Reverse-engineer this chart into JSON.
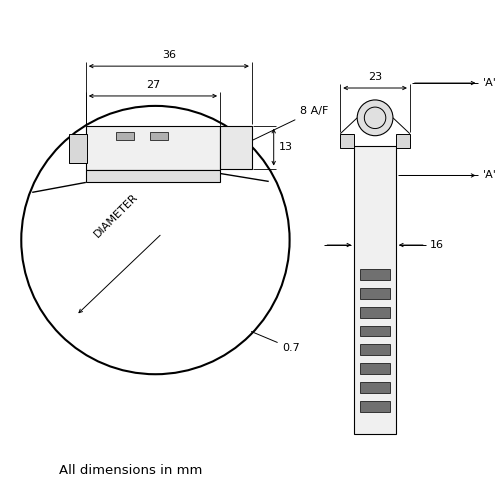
{
  "bg_color": "#ffffff",
  "lc": "#000000",
  "title_text": "All dimensions in mm",
  "dim_36": "36",
  "dim_27": "27",
  "dim_8af": "8 A/F",
  "dim_13": "13",
  "dim_diameter": "DIAMETER",
  "dim_07": "0.7",
  "dim_23": "23",
  "dim_16": "16",
  "dim_A": "'A'",
  "figsize": [
    5.0,
    5.0
  ],
  "dpi": 100
}
